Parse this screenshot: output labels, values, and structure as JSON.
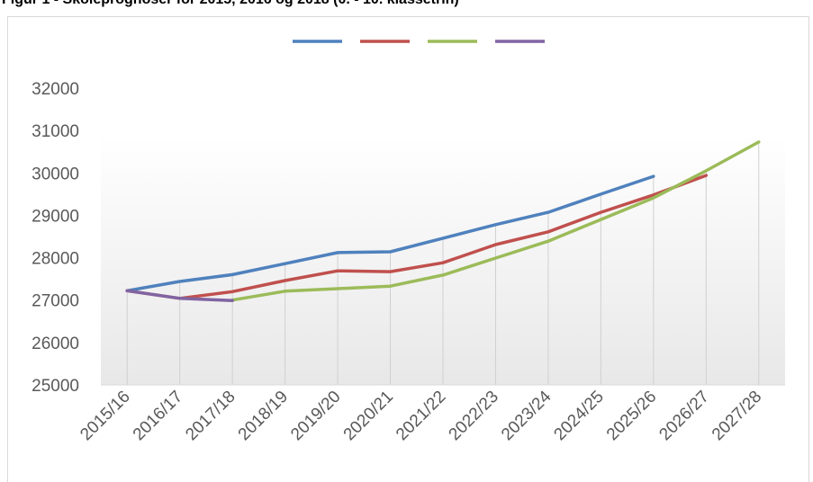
{
  "chart_data": {
    "type": "line",
    "title": "Figur 1 - Skoleprognoser for 2015, 2016 og 2018 (0. - 10. klassetrin)",
    "categories": [
      "2015/16",
      "2016/17",
      "2017/18",
      "2018/19",
      "2019/20",
      "2020/21",
      "2021/22",
      "2022/23",
      "2023/24",
      "2024/25",
      "2025/26",
      "2026/27",
      "2027/28"
    ],
    "series": [
      {
        "color": "#4f81bd",
        "values": [
          27220,
          27440,
          27600,
          27860,
          28120,
          28140,
          28460,
          28780,
          29070,
          29500,
          29920,
          null,
          null
        ]
      },
      {
        "color": "#c0504d",
        "values": [
          27220,
          27040,
          27200,
          27460,
          27690,
          27670,
          27880,
          28310,
          28610,
          29070,
          29480,
          29940,
          null
        ]
      },
      {
        "color": "#9bbb59",
        "values": [
          null,
          null,
          27000,
          27210,
          27270,
          27330,
          27590,
          27990,
          28390,
          28900,
          29410,
          30050,
          30730
        ]
      },
      {
        "color": "#8064a2",
        "values": [
          27220,
          27040,
          26990,
          null,
          null,
          null,
          null,
          null,
          null,
          null,
          null,
          null,
          null
        ]
      }
    ],
    "ylim": [
      25000,
      32000
    ],
    "yticks": [
      25000,
      26000,
      27000,
      28000,
      29000,
      30000,
      31000,
      32000
    ]
  }
}
